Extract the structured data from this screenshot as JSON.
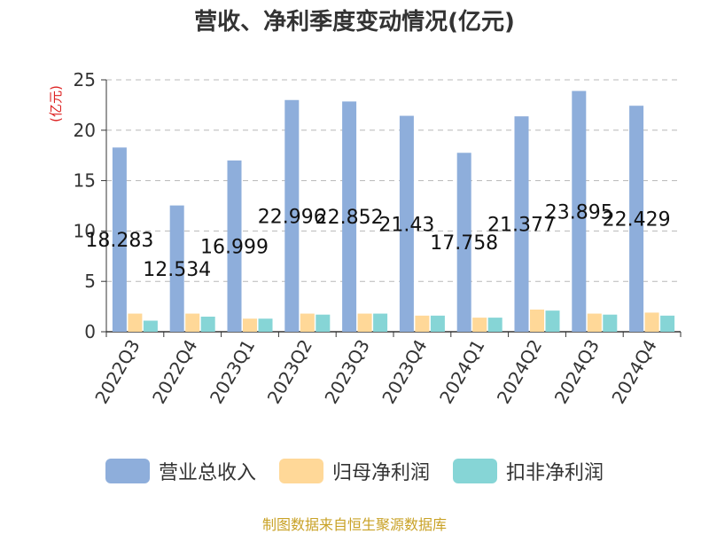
{
  "chart_data": {
    "type": "bar",
    "title": "营收、净利季度变动情况(亿元)",
    "ylabel": "(亿元)",
    "ylim": [
      0,
      25
    ],
    "yticks": [
      0,
      5,
      10,
      15,
      20,
      25
    ],
    "grid": true,
    "legend_position": "bottom",
    "categories": [
      "2022Q3",
      "2022Q4",
      "2023Q1",
      "2023Q2",
      "2023Q3",
      "2023Q4",
      "2024Q1",
      "2024Q2",
      "2024Q3",
      "2024Q4"
    ],
    "series": [
      {
        "name": "营业总收入",
        "color": "#8eaedb",
        "values": [
          18.283,
          12.534,
          16.999,
          22.996,
          22.852,
          21.43,
          17.758,
          21.377,
          23.895,
          22.429
        ],
        "labels": [
          "18.283",
          "12.534",
          "16.999",
          "22.996",
          "22.852",
          "21.43",
          "17.758",
          "21.377",
          "23.895",
          "22.429"
        ]
      },
      {
        "name": "归母净利润",
        "color": "#ffd898",
        "values": [
          1.8,
          1.8,
          1.3,
          1.8,
          1.8,
          1.6,
          1.4,
          2.2,
          1.8,
          1.9
        ]
      },
      {
        "name": "扣非净利润",
        "color": "#86d5d6",
        "values": [
          1.1,
          1.5,
          1.3,
          1.7,
          1.8,
          1.6,
          1.4,
          2.1,
          1.7,
          1.6
        ]
      }
    ]
  },
  "source": "制图数据来自恒生聚源数据库"
}
